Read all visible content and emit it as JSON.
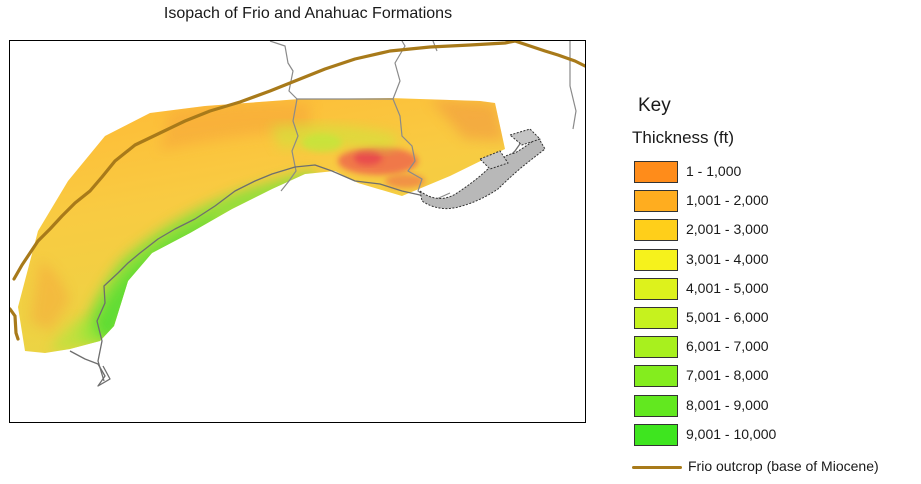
{
  "map": {
    "title": "Isopach of Frio and Anahuac Formations"
  },
  "legend": {
    "key_label": "Key",
    "subtitle": "Thickness (ft)",
    "items": [
      {
        "label": "1 - 1,000",
        "color": "#ff8c1a"
      },
      {
        "label": "1,001 - 2,000",
        "color": "#ffad1f"
      },
      {
        "label": "2,001 - 3,000",
        "color": "#ffcf1a"
      },
      {
        "label": "3,001 - 4,000",
        "color": "#f6f21c"
      },
      {
        "label": "4,001 - 5,000",
        "color": "#ddf21c"
      },
      {
        "label": "5,001 - 6,000",
        "color": "#c6f21e"
      },
      {
        "label": "6,001 - 7,000",
        "color": "#a8f01e"
      },
      {
        "label": "7,001 - 8,000",
        "color": "#84ed1e"
      },
      {
        "label": "8,001 - 9,000",
        "color": "#62e81f"
      },
      {
        "label": "9,001 - 10,000",
        "color": "#3ee51f"
      }
    ],
    "outcrop_label": "Frio outcrop (base of Miocene)",
    "outcrop_color": "#a87a1a"
  }
}
